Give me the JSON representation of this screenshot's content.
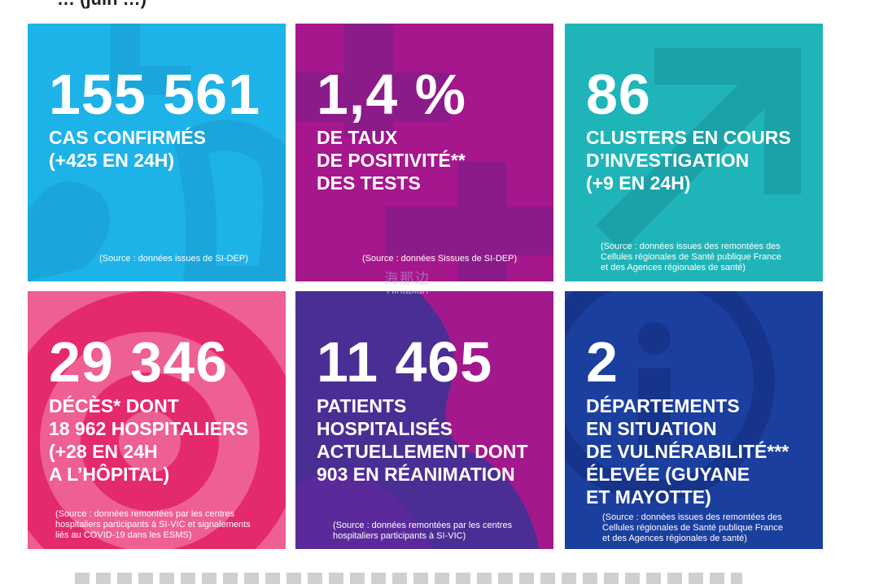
{
  "header_fragment": "… (juin …)",
  "tiles": [
    {
      "number": "155 561",
      "label_lines": [
        "CAS CONFIRMÉS",
        "(+425 EN 24H)"
      ],
      "source_lines": [
        "(Source : données issues de SI-DEP)"
      ],
      "color": "#1fb4e8"
    },
    {
      "number": "1,4 %",
      "label_lines": [
        "DE TAUX",
        "DE POSITIVITÉ**",
        "DES TESTS"
      ],
      "source_lines": [
        "(Source : données Sissues de SI-DEP)"
      ],
      "color": "#a6168d"
    },
    {
      "number": "86",
      "label_lines": [
        "CLUSTERS EN COURS",
        "D’INVESTIGATION",
        "(+9 EN 24H)"
      ],
      "source_lines": [
        "(Source : données issues des remontées des",
        "Cellules régionales de Santé publique France",
        "et des Agences régionales de santé)"
      ],
      "color": "#1eb5b8"
    },
    {
      "number": "29 346",
      "label_lines": [
        "DÉCÈS* DONT",
        "18 962 HOSPITALIERS",
        "(+28 EN 24H",
        "A L’HÔPITAL)"
      ],
      "source_lines": [
        "(Source : données remontées par les centres",
        "hospitaliers participants à SI-VIC et signalements",
        "liés au COVID-19 dans les ESMS)"
      ],
      "color": "#e6356f"
    },
    {
      "number": "11 465",
      "label_lines": [
        "PATIENTS",
        "HOSPITALISÉS",
        "ACTUELLEMENT DONT",
        "903 EN RÉANIMATION"
      ],
      "source_lines": [
        "(Source : données remontées par les centres",
        "hospitaliers participants à SI-VIC)"
      ],
      "color": "#4a2d93"
    },
    {
      "number": "2",
      "label_lines": [
        "DÉPARTEMENTS",
        "EN SITUATION",
        "DE VULNÉRABILITÉ***",
        "ÉLEVÉE (GUYANE",
        "ET MAYOTTE)"
      ],
      "source_lines": [
        "(Source : données issues des remontées des",
        "Cellules régionales de Santé publique France",
        "et des Agences régionales de santé)"
      ],
      "color": "#1a3d9e"
    }
  ],
  "watermark": {
    "cn": "海那边",
    "en": "Hinabian"
  }
}
